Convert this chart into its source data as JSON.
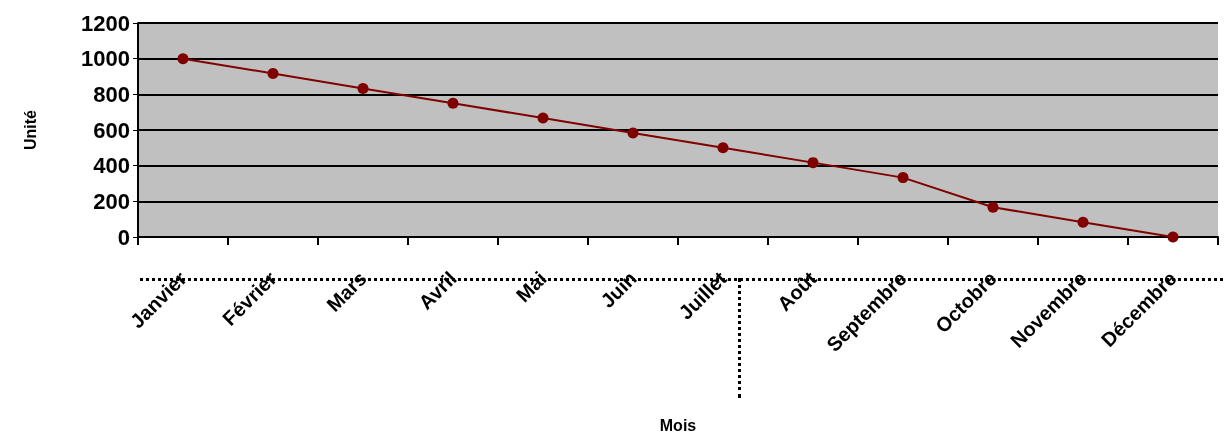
{
  "chart_data": {
    "type": "line",
    "xlabel": "Mois",
    "ylabel": "Unité",
    "categories": [
      "Janvier",
      "Février",
      "Mars",
      "Avril",
      "Mai",
      "Juin",
      "Juillet",
      "Août",
      "Septembre",
      "Octobre",
      "Novembre",
      "Décembre"
    ],
    "series": [
      {
        "color": "#800000",
        "values": [
          1000,
          917,
          833,
          750,
          667,
          583,
          500,
          417,
          333,
          167,
          83,
          0
        ]
      }
    ],
    "ylim": [
      0,
      1200
    ],
    "yticks": [
      0,
      200,
      400,
      600,
      800,
      1000,
      1200
    ],
    "grid": "y",
    "marker": "circle",
    "line_style": "solid"
  }
}
